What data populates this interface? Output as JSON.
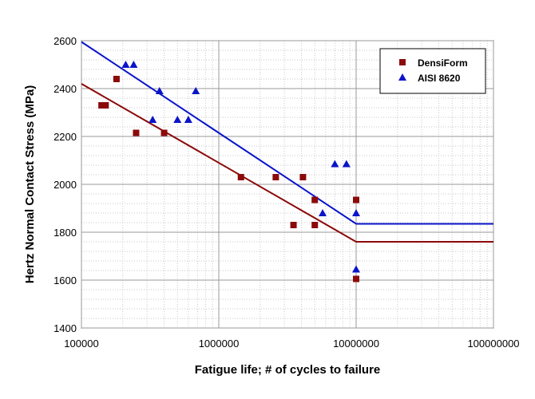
{
  "chart_data": {
    "type": "scatter",
    "xlabel": "Fatigue life; # of cycles to failure",
    "ylabel": "Hertz Normal Contact Stress (MPa)",
    "x_scale": "log",
    "xlim": [
      100000,
      100000000
    ],
    "ylim": [
      1400,
      2600
    ],
    "x_ticks": [
      "100000",
      "1000000",
      "10000000",
      "100000000"
    ],
    "y_ticks": [
      "1400",
      "1600",
      "1800",
      "2000",
      "2200",
      "2400",
      "2600"
    ],
    "grid": true,
    "legend_position": "top-right",
    "series": [
      {
        "name": "DensiForm",
        "marker": "square",
        "color": "#8b0a0a",
        "points": [
          [
            140000,
            2330
          ],
          [
            150000,
            2330
          ],
          [
            180000,
            2440
          ],
          [
            250000,
            2215
          ],
          [
            400000,
            2215
          ],
          [
            1450000,
            2030
          ],
          [
            2600000,
            2030
          ],
          [
            3500000,
            1830
          ],
          [
            4100000,
            2030
          ],
          [
            5000000,
            1830
          ],
          [
            5000000,
            1935
          ],
          [
            10000000,
            1935
          ],
          [
            10000000,
            1605
          ],
          [
            10000000,
            1605
          ]
        ],
        "fit_line": [
          [
            100000,
            2420
          ],
          [
            10000000,
            1760
          ],
          [
            100000000,
            1760
          ]
        ]
      },
      {
        "name": "AISI 8620",
        "marker": "triangle",
        "color": "#0a14c8",
        "points": [
          [
            210000,
            2500
          ],
          [
            240000,
            2500
          ],
          [
            330000,
            2270
          ],
          [
            370000,
            2390
          ],
          [
            500000,
            2270
          ],
          [
            600000,
            2270
          ],
          [
            680000,
            2390
          ],
          [
            5700000,
            1880
          ],
          [
            7000000,
            2085
          ],
          [
            8500000,
            2085
          ],
          [
            10000000,
            1880
          ],
          [
            10000000,
            1645
          ]
        ],
        "fit_line": [
          [
            100000,
            2595
          ],
          [
            10000000,
            1835
          ],
          [
            100000000,
            1835
          ]
        ]
      }
    ]
  }
}
